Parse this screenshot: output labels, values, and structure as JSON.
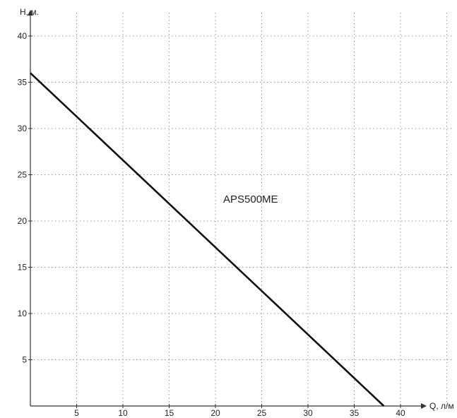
{
  "chart_data": {
    "type": "line",
    "title": "",
    "xlabel": "Q, л/м",
    "ylabel": "H, м.",
    "xlim": [
      0,
      40
    ],
    "ylim": [
      0,
      40
    ],
    "x_ticks": [
      "5",
      "10",
      "15",
      "20",
      "25",
      "30",
      "35",
      "40"
    ],
    "y_ticks": [
      "5",
      "10",
      "15",
      "20",
      "25",
      "30",
      "35",
      "40"
    ],
    "grid": "dotted",
    "series": [
      {
        "name": "APS500ME",
        "color": "#111111",
        "x": [
          0,
          38.2
        ],
        "y": [
          36,
          0
        ]
      }
    ]
  }
}
